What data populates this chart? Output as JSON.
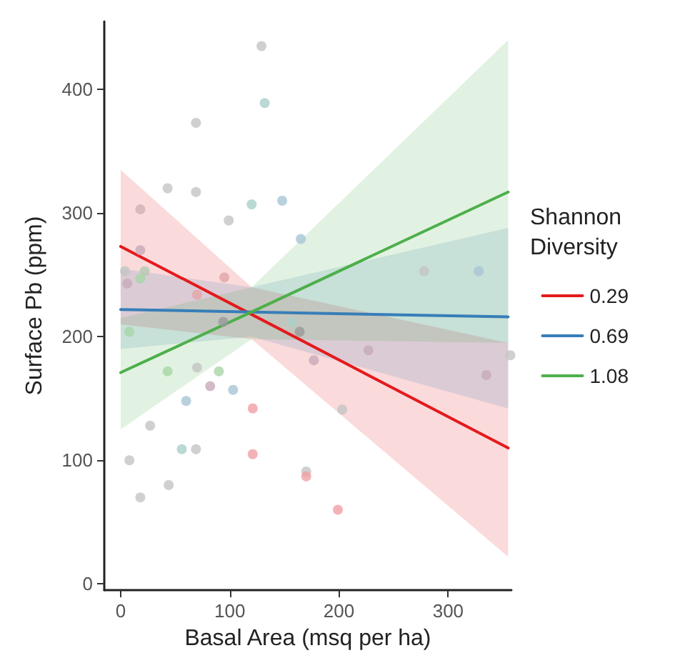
{
  "chart_data": {
    "type": "line",
    "xlabel": "Basal Area (msq per ha)",
    "ylabel": "Surface Pb (ppm)",
    "legend_title": "Shannon Diversity",
    "xlim": [
      -15,
      358
    ],
    "ylim": [
      -5,
      455
    ],
    "xticks": [
      0,
      100,
      200,
      300
    ],
    "yticks": [
      0,
      100,
      200,
      300,
      400
    ],
    "grid": false,
    "legend": "right",
    "marker": "none",
    "series": [
      {
        "name": "0.29",
        "color": "#e41a1c",
        "x": [
          0,
          120,
          355
        ],
        "values": [
          273,
          218,
          110
        ],
        "lower": [
          210,
          198,
          22
        ],
        "upper": [
          335,
          240,
          195
        ]
      },
      {
        "name": "0.69",
        "color": "#377eb8",
        "x": [
          0,
          120,
          355
        ],
        "values": [
          222,
          220,
          216
        ],
        "lower": [
          190,
          200,
          142
        ],
        "upper": [
          255,
          240,
          288
        ]
      },
      {
        "name": "1.08",
        "color": "#4daf4a",
        "x": [
          0,
          120,
          355
        ],
        "values": [
          171,
          220,
          317
        ],
        "lower": [
          125,
          198,
          195
        ],
        "upper": [
          215,
          240,
          440
        ]
      },
      {
        "type": "scatter",
        "marker": "circle",
        "x": [
          129,
          132,
          69,
          43,
          69,
          18,
          120,
          148,
          99,
          165,
          18,
          4,
          22,
          6,
          18,
          95,
          70,
          278,
          328,
          8,
          94,
          157,
          164,
          177,
          43,
          70,
          90,
          82,
          103,
          60,
          121,
          27,
          8,
          56,
          69,
          121,
          18,
          44,
          170,
          170,
          227,
          357,
          335,
          203,
          199
        ],
        "values": [
          435,
          389,
          373,
          320,
          317,
          303,
          307,
          310,
          294,
          279,
          270,
          253,
          253,
          243,
          247,
          248,
          234,
          253,
          253,
          204,
          212,
          212,
          204,
          181,
          172,
          175,
          172,
          160,
          157,
          148,
          142,
          128,
          100,
          109,
          109,
          105,
          70,
          80,
          91,
          87,
          189,
          185,
          169,
          141,
          60
        ],
        "colors": [
          "#c4c4c4",
          "#a9cfc9",
          "#c4c4c4",
          "#c4c4c4",
          "#c4c4c4",
          "#d2b0b4",
          "#a9cfc9",
          "#a7c4d6",
          "#c4c4c4",
          "#a7c4d6",
          "#c7aab8",
          "#c4c4c4",
          "#b4c8b4",
          "#c7aab8",
          "#a8d6a8",
          "#e4a4a8",
          "#e4a4a8",
          "#c4c4c4",
          "#a7c4d6",
          "#a8d6a8",
          "#9a9a9a",
          "#a9cfc9",
          "#9a9a9a",
          "#c7aab8",
          "#a8d6a8",
          "#c4c4c4",
          "#a8d6a8",
          "#c7aab8",
          "#a7c4d6",
          "#a7c4d6",
          "#f0a0a4",
          "#c4c4c4",
          "#c4c4c4",
          "#a9cfc9",
          "#c4c4c4",
          "#f0a0a4",
          "#c4c4c4",
          "#c4c4c4",
          "#c4c4c4",
          "#f0a0a4",
          "#c7aab8",
          "#c4c4c4",
          "#c7aab8",
          "#c4c4c4",
          "#f0a0a4"
        ]
      }
    ]
  }
}
